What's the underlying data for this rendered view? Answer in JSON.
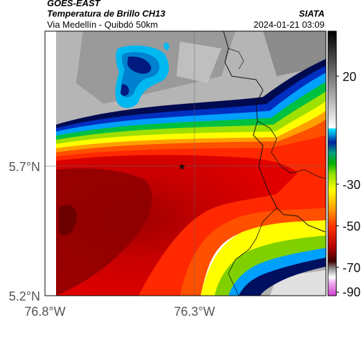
{
  "header": {
    "satellite": "GOES-EAST",
    "product": "Temperatura de Brillo CH13",
    "region": "Via Medellín - Quibdó 50km",
    "source": "SIATA",
    "timestamp": "2024-01-21 03:09"
  },
  "map": {
    "lat_labels": [
      "5.7°N",
      "5.2°N"
    ],
    "lon_labels": [
      "76.8°W",
      "76.3°W"
    ],
    "marker": "star-marker"
  },
  "colorbar": {
    "ticks": [
      "20",
      "-30",
      "-50",
      "-70",
      "-90"
    ],
    "colors": {
      "warm": "#ffffff",
      "cold_gray": "#7a7a7a",
      "cyan": "#00c8ff",
      "blue": "#0033aa",
      "navy": "#001060",
      "green": "#00b000",
      "yellow": "#ffff00",
      "orange": "#ff8000",
      "red": "#e00000",
      "dark_red": "#700000",
      "magenta": "#d040d0"
    }
  }
}
